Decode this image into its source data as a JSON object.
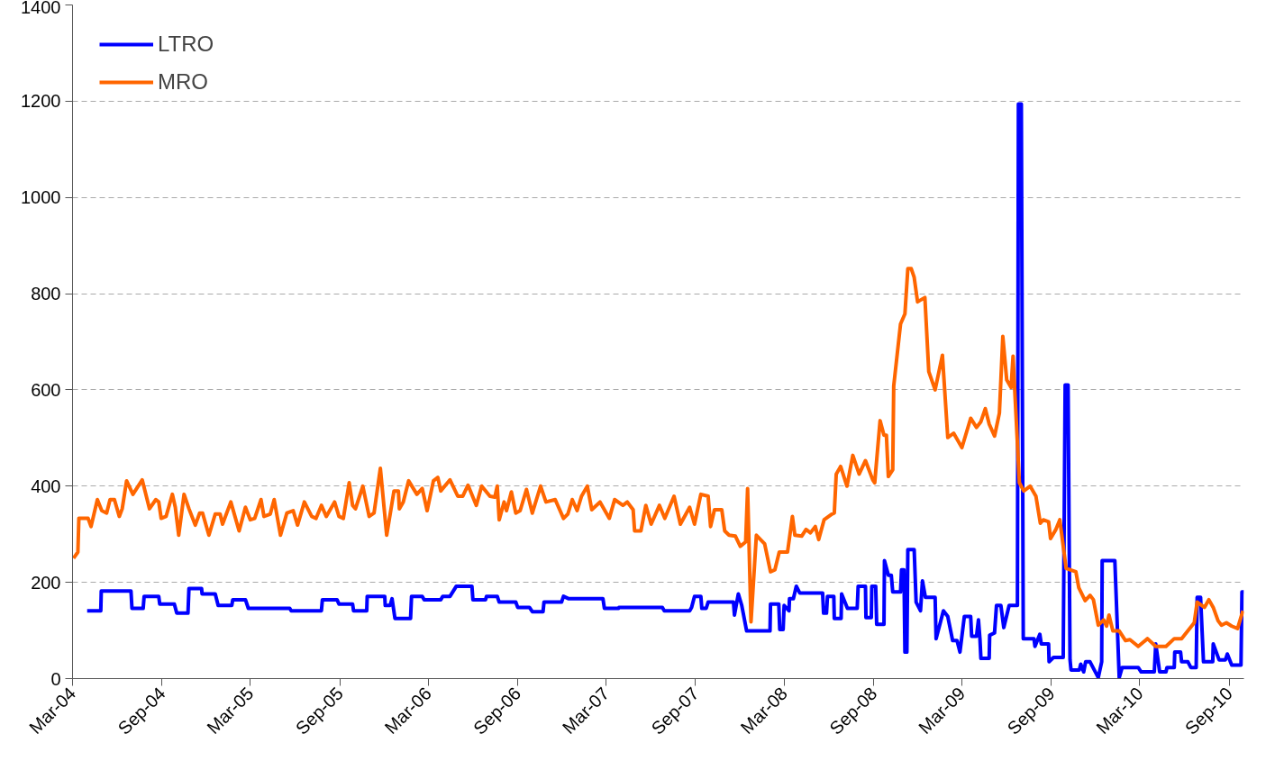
{
  "chart_data": {
    "type": "line",
    "xlim": [
      "2004-03-01",
      "2010-10-01"
    ],
    "ylim": [
      0,
      1400
    ],
    "yticks": [
      0,
      200,
      400,
      600,
      800,
      1000,
      1200,
      1400
    ],
    "xticks": [
      {
        "value": "2004-03-01",
        "label": "Mar-04"
      },
      {
        "value": "2004-09-01",
        "label": "Sep-04"
      },
      {
        "value": "2005-03-01",
        "label": "Mar-05"
      },
      {
        "value": "2005-09-01",
        "label": "Sep-05"
      },
      {
        "value": "2006-03-01",
        "label": "Mar-06"
      },
      {
        "value": "2006-09-01",
        "label": "Sep-06"
      },
      {
        "value": "2007-03-01",
        "label": "Mar-07"
      },
      {
        "value": "2007-09-01",
        "label": "Sep-07"
      },
      {
        "value": "2008-03-01",
        "label": "Mar-08"
      },
      {
        "value": "2008-09-01",
        "label": "Sep-08"
      },
      {
        "value": "2009-03-01",
        "label": "Mar-09"
      },
      {
        "value": "2009-09-01",
        "label": "Sep-09"
      },
      {
        "value": "2010-03-01",
        "label": "Mar-10"
      },
      {
        "value": "2010-09-01",
        "label": "Sep-10"
      }
    ],
    "grid": "y",
    "legend": "top left",
    "marker": "none",
    "line_style": "solid",
    "series": [
      {
        "name": "LTRO",
        "color": "#0000ff",
        "x": [
          "2004-03-31",
          "2004-04-28",
          "2004-04-29",
          "2004-06-29",
          "2004-07-01",
          "2004-07-24",
          "2004-07-26",
          "2004-08-25",
          "2004-08-27",
          "2004-09-26",
          "2004-10-01",
          "2004-10-24",
          "2004-10-26",
          "2004-11-21",
          "2004-11-22",
          "2004-12-19",
          "2004-12-25",
          "2005-01-22",
          "2005-01-24",
          "2005-02-19",
          "2005-02-25",
          "2005-05-21",
          "2005-05-24",
          "2005-07-25",
          "2005-07-27",
          "2005-08-26",
          "2005-08-30",
          "2005-09-27",
          "2005-09-29",
          "2005-10-26",
          "2005-10-27",
          "2005-12-02",
          "2005-12-03",
          "2005-12-13",
          "2005-12-17",
          "2005-12-23",
          "2006-01-24",
          "2006-01-26",
          "2006-02-17",
          "2006-02-21",
          "2006-03-27",
          "2006-03-31",
          "2006-04-15",
          "2006-04-28",
          "2006-05-30",
          "2006-06-01",
          "2006-06-27",
          "2006-06-29",
          "2006-07-21",
          "2006-07-25",
          "2006-08-28",
          "2006-09-01",
          "2006-09-25",
          "2006-10-01",
          "2006-10-23",
          "2006-10-25",
          "2006-11-30",
          "2006-12-04",
          "2006-12-15",
          "2007-02-23",
          "2007-02-26",
          "2007-03-27",
          "2007-03-28",
          "2007-06-25",
          "2007-06-29",
          "2007-08-20",
          "2007-08-24",
          "2007-08-30",
          "2007-09-12",
          "2007-09-14",
          "2007-09-23",
          "2007-09-27",
          "2007-11-18",
          "2007-11-20",
          "2007-11-28",
          "2007-12-05",
          "2007-12-15",
          "2008-02-01",
          "2008-02-02",
          "2008-02-19",
          "2008-02-21",
          "2008-02-28",
          "2008-03-01",
          "2008-03-11",
          "2008-03-12",
          "2008-03-20",
          "2008-03-26",
          "2008-04-02",
          "2008-05-19",
          "2008-05-21",
          "2008-05-27",
          "2008-05-29",
          "2008-06-11",
          "2008-06-12",
          "2008-06-26",
          "2008-06-27",
          "2008-07-09",
          "2008-07-29",
          "2008-07-31",
          "2008-08-15",
          "2008-08-16",
          "2008-08-27",
          "2008-08-28",
          "2008-09-05",
          "2008-09-07",
          "2008-09-22",
          "2008-09-23",
          "2008-10-01",
          "2008-10-07",
          "2008-10-10",
          "2008-10-26",
          "2008-10-28",
          "2008-11-02",
          "2008-11-04",
          "2008-11-08",
          "2008-11-10",
          "2008-11-23",
          "2008-11-27",
          "2008-12-06",
          "2008-12-10",
          "2008-12-16",
          "2009-01-05",
          "2009-01-07",
          "2009-01-22",
          "2009-01-31",
          "2009-02-10",
          "2009-02-19",
          "2009-02-25",
          "2009-03-06",
          "2009-03-19",
          "2009-03-21",
          "2009-03-31",
          "2009-04-04",
          "2009-04-07",
          "2009-04-09",
          "2009-04-26",
          "2009-04-27",
          "2009-05-07",
          "2009-05-11",
          "2009-05-20",
          "2009-05-26",
          "2009-06-06",
          "2009-06-23",
          "2009-06-25",
          "2009-07-01",
          "2009-07-05",
          "2009-07-27",
          "2009-07-29",
          "2009-08-08",
          "2009-08-11",
          "2009-08-26",
          "2009-08-27",
          "2009-09-05",
          "2009-09-25",
          "2009-09-29",
          "2009-10-05",
          "2009-10-09",
          "2009-10-11",
          "2009-10-28",
          "2009-10-31",
          "2009-11-06",
          "2009-11-10",
          "2009-11-19",
          "2009-12-06",
          "2009-12-13",
          "2009-12-14",
          "2010-01-09",
          "2010-01-18",
          "2010-01-24",
          "2010-02-10",
          "2010-02-26",
          "2010-03-04",
          "2010-03-31",
          "2010-04-03",
          "2010-04-11",
          "2010-04-24",
          "2010-04-26",
          "2010-05-11",
          "2010-05-12",
          "2010-05-24",
          "2010-05-26",
          "2010-06-08",
          "2010-06-14",
          "2010-06-25",
          "2010-06-27",
          "2010-07-04",
          "2010-07-10",
          "2010-07-29",
          "2010-07-30",
          "2010-08-11",
          "2010-08-24",
          "2010-08-28",
          "2010-09-06",
          "2010-09-25",
          "2010-09-27",
          "2010-10-01"
        ],
        "values": [
          141,
          141,
          182,
          182,
          146,
          146,
          171,
          171,
          155,
          155,
          136,
          136,
          187,
          187,
          176,
          176,
          152,
          152,
          164,
          164,
          146,
          146,
          141,
          141,
          164,
          164,
          155,
          155,
          141,
          141,
          171,
          171,
          152,
          152,
          166,
          125,
          125,
          171,
          171,
          164,
          164,
          171,
          171,
          192,
          192,
          164,
          164,
          171,
          171,
          159,
          159,
          148,
          148,
          139,
          139,
          159,
          159,
          171,
          166,
          166,
          146,
          146,
          148,
          148,
          141,
          141,
          148,
          171,
          171,
          146,
          146,
          159,
          159,
          132,
          176,
          152,
          99,
          99,
          155,
          155,
          102,
          102,
          152,
          141,
          166,
          166,
          192,
          178,
          178,
          136,
          136,
          171,
          171,
          125,
          125,
          176,
          146,
          146,
          192,
          192,
          127,
          127,
          192,
          192,
          113,
          113,
          245,
          215,
          215,
          180,
          180,
          226,
          226,
          55,
          55,
          268,
          268,
          159,
          141,
          203,
          169,
          169,
          83,
          141,
          129,
          79,
          79,
          55,
          129,
          129,
          88,
          88,
          122,
          83,
          42,
          42,
          90,
          95,
          152,
          152,
          106,
          152,
          152,
          1194,
          1194,
          83,
          83,
          67,
          92,
          72,
          72,
          35,
          44,
          44,
          610,
          610,
          39,
          18,
          18,
          30,
          14,
          35,
          35,
          2,
          35,
          245,
          245,
          2,
          23,
          23,
          23,
          14,
          14,
          72,
          14,
          14,
          23,
          23,
          55,
          55,
          35,
          35,
          23,
          23,
          169,
          169,
          35,
          35,
          72,
          39,
          39,
          51,
          28,
          28,
          180,
          180
        ]
      },
      {
        "name": "MRO",
        "color": "#ff6600",
        "x": [
          "2004-03-03",
          "2004-03-12",
          "2004-03-14",
          "2004-04-02",
          "2004-04-08",
          "2004-04-21",
          "2004-04-30",
          "2004-05-10",
          "2004-05-17",
          "2004-05-26",
          "2004-06-05",
          "2004-06-11",
          "2004-06-20",
          "2004-07-03",
          "2004-07-22",
          "2004-08-06",
          "2004-08-19",
          "2004-08-25",
          "2004-08-30",
          "2004-09-09",
          "2004-09-22",
          "2004-09-28",
          "2004-10-05",
          "2004-10-16",
          "2004-10-26",
          "2004-11-08",
          "2004-11-17",
          "2004-11-23",
          "2004-12-06",
          "2004-12-19",
          "2004-12-29",
          "2005-01-03",
          "2005-01-20",
          "2005-02-06",
          "2005-02-19",
          "2005-03-01",
          "2005-03-10",
          "2005-03-23",
          "2005-03-29",
          "2005-04-11",
          "2005-04-19",
          "2005-05-02",
          "2005-05-15",
          "2005-05-28",
          "2005-06-06",
          "2005-06-20",
          "2005-07-05",
          "2005-07-14",
          "2005-07-25",
          "2005-08-04",
          "2005-08-21",
          "2005-08-30",
          "2005-09-08",
          "2005-09-20",
          "2005-09-27",
          "2005-10-03",
          "2005-10-18",
          "2005-10-31",
          "2005-11-10",
          "2005-11-23",
          "2005-12-06",
          "2005-12-21",
          "2005-12-30",
          "2006-01-01",
          "2006-01-09",
          "2006-01-20",
          "2006-02-06",
          "2006-02-17",
          "2006-02-27",
          "2006-03-12",
          "2006-03-21",
          "2006-03-27",
          "2006-04-15",
          "2006-05-01",
          "2006-05-11",
          "2006-05-22",
          "2006-06-08",
          "2006-06-19",
          "2006-07-06",
          "2006-07-16",
          "2006-07-21",
          "2006-07-25",
          "2006-08-04",
          "2006-08-09",
          "2006-08-19",
          "2006-08-28",
          "2006-09-06",
          "2006-09-19",
          "2006-10-01",
          "2006-10-18",
          "2006-10-29",
          "2006-11-17",
          "2006-12-04",
          "2006-12-13",
          "2006-12-22",
          "2007-01-01",
          "2007-01-10",
          "2007-01-22",
          "2007-01-31",
          "2007-02-17",
          "2007-03-08",
          "2007-03-19",
          "2007-04-05",
          "2007-04-14",
          "2007-04-26",
          "2007-04-29",
          "2007-05-12",
          "2007-05-22",
          "2007-06-02",
          "2007-06-19",
          "2007-06-30",
          "2007-07-19",
          "2007-08-01",
          "2007-08-20",
          "2007-08-30",
          "2007-09-12",
          "2007-09-27",
          "2007-10-02",
          "2007-10-10",
          "2007-10-25",
          "2007-10-31",
          "2007-11-09",
          "2007-11-22",
          "2007-12-02",
          "2007-12-13",
          "2007-12-17",
          "2007-12-24",
          "2008-01-04",
          "2008-01-21",
          "2008-02-02",
          "2008-02-11",
          "2008-02-20",
          "2008-03-08",
          "2008-03-18",
          "2008-03-23",
          "2008-04-06",
          "2008-04-15",
          "2008-04-24",
          "2008-05-04",
          "2008-05-11",
          "2008-05-22",
          "2008-06-07",
          "2008-06-12",
          "2008-06-16",
          "2008-06-25",
          "2008-07-08",
          "2008-07-20",
          "2008-08-02",
          "2008-08-15",
          "2008-08-30",
          "2008-09-03",
          "2008-09-14",
          "2008-09-22",
          "2008-09-27",
          "2008-10-01",
          "2008-10-10",
          "2008-10-12",
          "2008-10-26",
          "2008-11-04",
          "2008-11-10",
          "2008-11-17",
          "2008-11-23",
          "2008-11-30",
          "2008-12-15",
          "2008-12-23",
          "2009-01-05",
          "2009-01-20",
          "2009-01-31",
          "2009-02-12",
          "2009-03-01",
          "2009-03-19",
          "2009-03-31",
          "2009-04-09",
          "2009-04-18",
          "2009-04-26",
          "2009-05-07",
          "2009-05-17",
          "2009-05-24",
          "2009-06-01",
          "2009-06-10",
          "2009-06-14",
          "2009-06-27",
          "2009-07-06",
          "2009-07-19",
          "2009-07-31",
          "2009-08-09",
          "2009-08-15",
          "2009-08-26",
          "2009-08-30",
          "2009-09-10",
          "2009-09-18",
          "2009-10-01",
          "2009-10-21",
          "2009-10-27",
          "2009-11-09",
          "2009-11-19",
          "2009-11-26",
          "2009-12-06",
          "2009-12-17",
          "2009-12-23",
          "2009-12-28",
          "2010-01-05",
          "2010-01-18",
          "2010-01-31",
          "2010-02-09",
          "2010-02-26",
          "2010-03-17",
          "2010-04-03",
          "2010-04-24",
          "2010-05-11",
          "2010-05-26",
          "2010-06-21",
          "2010-06-27",
          "2010-07-12",
          "2010-07-21",
          "2010-07-30",
          "2010-08-09",
          "2010-08-16",
          "2010-08-26",
          "2010-09-06",
          "2010-09-18",
          "2010-09-29"
        ],
        "values": [
          250,
          263,
          333,
          333,
          316,
          372,
          349,
          344,
          372,
          372,
          337,
          353,
          411,
          383,
          413,
          353,
          372,
          367,
          333,
          337,
          383,
          356,
          298,
          383,
          353,
          319,
          344,
          344,
          298,
          342,
          342,
          321,
          367,
          307,
          356,
          330,
          333,
          372,
          337,
          342,
          372,
          298,
          344,
          349,
          319,
          367,
          337,
          333,
          360,
          337,
          367,
          337,
          333,
          407,
          360,
          353,
          400,
          337,
          344,
          437,
          298,
          390,
          390,
          353,
          367,
          411,
          383,
          395,
          349,
          411,
          418,
          390,
          413,
          379,
          379,
          402,
          360,
          400,
          379,
          377,
          400,
          330,
          367,
          349,
          388,
          344,
          349,
          393,
          344,
          400,
          367,
          372,
          333,
          342,
          372,
          349,
          379,
          400,
          351,
          367,
          333,
          372,
          360,
          367,
          351,
          307,
          307,
          360,
          321,
          360,
          333,
          379,
          321,
          356,
          321,
          383,
          379,
          316,
          351,
          351,
          307,
          298,
          296,
          275,
          284,
          395,
          118,
          298,
          280,
          222,
          226,
          263,
          263,
          337,
          298,
          296,
          310,
          303,
          316,
          289,
          330,
          342,
          344,
          425,
          441,
          400,
          464,
          425,
          453,
          413,
          407,
          536,
          506,
          506,
          420,
          434,
          608,
          737,
          758,
          852,
          852,
          834,
          783,
          792,
          638,
          600,
          672,
          501,
          510,
          480,
          541,
          522,
          534,
          561,
          529,
          504,
          552,
          711,
          621,
          605,
          670,
          407,
          390,
          400,
          379,
          323,
          330,
          326,
          291,
          310,
          330,
          229,
          222,
          189,
          162,
          173,
          164,
          111,
          122,
          109,
          132,
          99,
          99,
          79,
          81,
          67,
          83,
          67,
          67,
          83,
          83,
          116,
          159,
          148,
          164,
          148,
          120,
          111,
          116,
          109,
          104,
          141
        ]
      }
    ]
  }
}
